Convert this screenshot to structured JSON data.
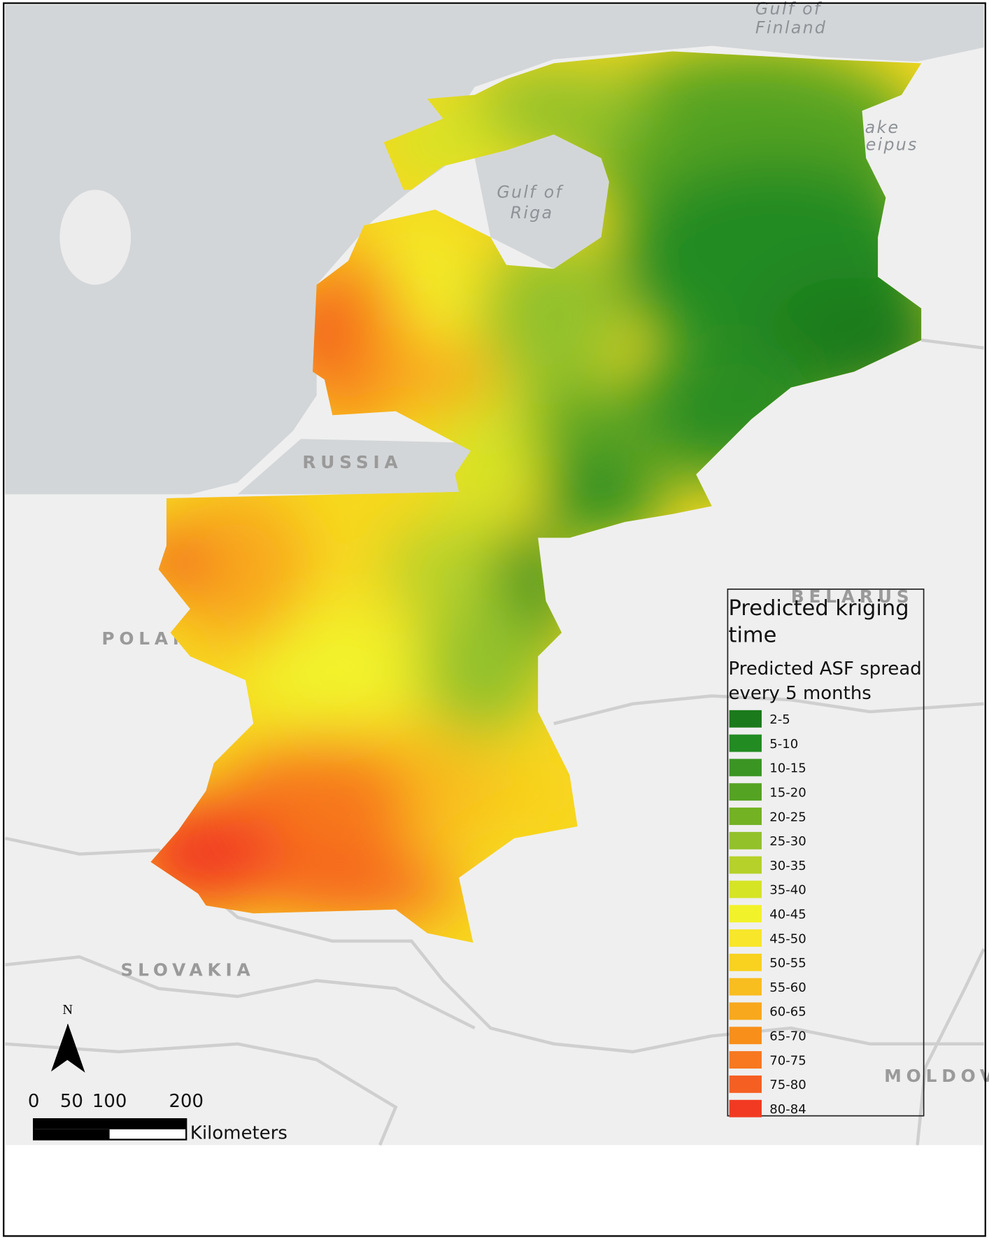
{
  "map": {
    "places": [
      {
        "label": "Gulf of"
      },
      {
        "label": "Finland"
      },
      {
        "label": "Gulf of"
      },
      {
        "label": "Riga"
      },
      {
        "label": "Lake"
      },
      {
        "label": "Peipus"
      },
      {
        "label": "RUSSIA"
      },
      {
        "label": "POLAND"
      },
      {
        "label": "BELARUS"
      },
      {
        "label": "SLOVAKIA"
      },
      {
        "label": "MOLDOVA"
      }
    ]
  },
  "legend": {
    "title": "Predicted kriging time",
    "subtitle": "Predicted ASF spread every 5 months",
    "items": [
      {
        "label": "2-5",
        "color": "#1b7a1b"
      },
      {
        "label": "5-10",
        "color": "#228b22"
      },
      {
        "label": "10-15",
        "color": "#3a9523"
      },
      {
        "label": "15-20",
        "color": "#55a322"
      },
      {
        "label": "20-25",
        "color": "#73b222"
      },
      {
        "label": "25-30",
        "color": "#93c12a"
      },
      {
        "label": "30-35",
        "color": "#b5d12a"
      },
      {
        "label": "35-40",
        "color": "#d6e426"
      },
      {
        "label": "40-45",
        "color": "#f2f22a"
      },
      {
        "label": "45-50",
        "color": "#f7e629"
      },
      {
        "label": "50-55",
        "color": "#f8d21f"
      },
      {
        "label": "55-60",
        "color": "#f8bd1f"
      },
      {
        "label": "60-65",
        "color": "#f8a81c"
      },
      {
        "label": "65-70",
        "color": "#f88f1a"
      },
      {
        "label": "70-75",
        "color": "#f7781f"
      },
      {
        "label": "75-80",
        "color": "#f65f22"
      },
      {
        "label": "80-84",
        "color": "#f23a22"
      }
    ]
  },
  "scale_bar": {
    "ticks": [
      "0",
      "50",
      "100",
      "200"
    ],
    "unit": "Kilometers"
  },
  "north_arrow": "N"
}
